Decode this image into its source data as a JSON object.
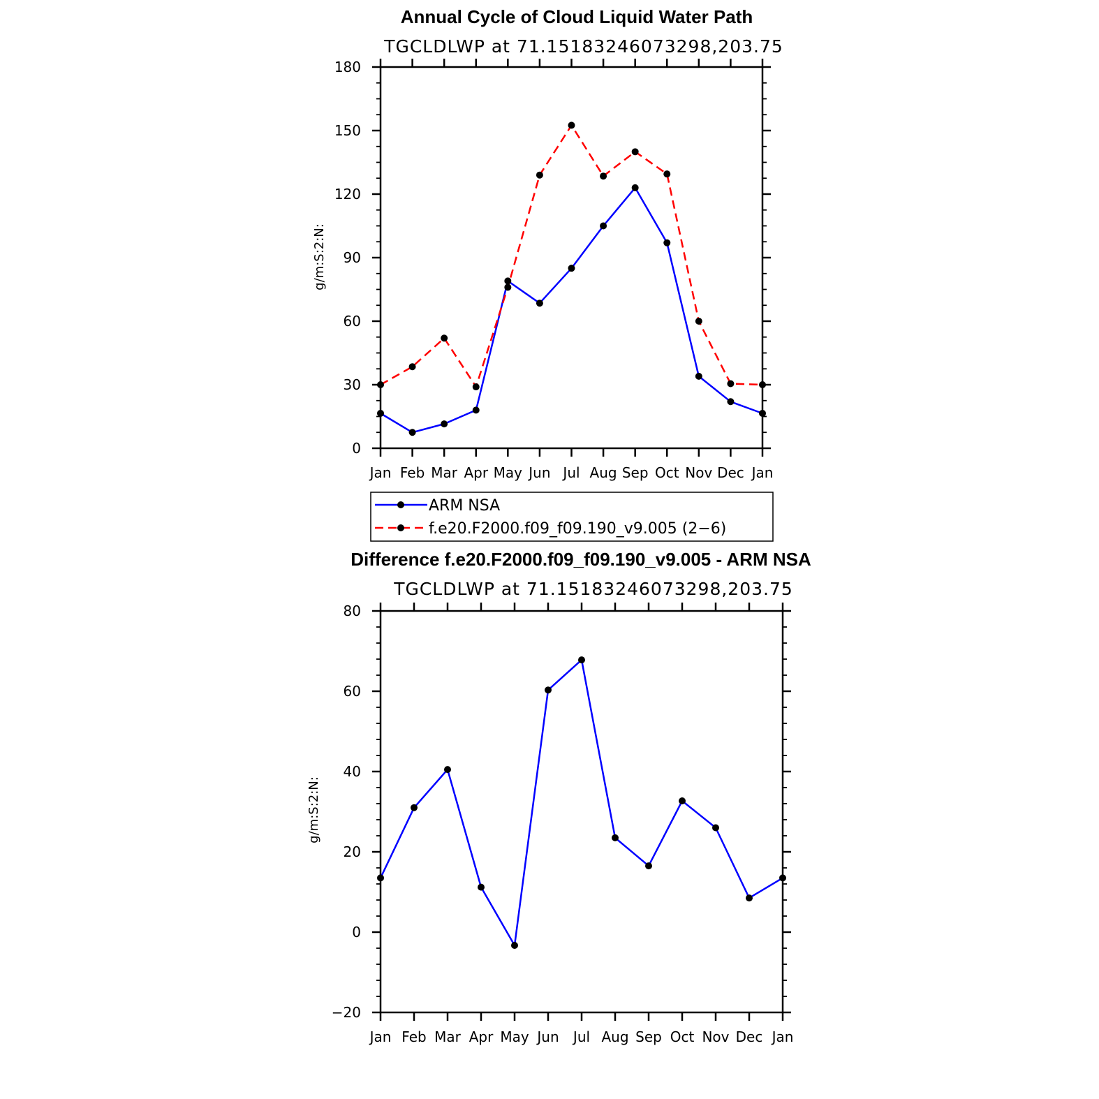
{
  "chart_data": [
    {
      "type": "line",
      "title": "Annual Cycle of Cloud Liquid Water Path",
      "subtitle": "TGCLDLWP  at  71.15183246073298,203.75",
      "xlabel": "",
      "ylabel": "g/m:S:2:N:",
      "categories": [
        "Jan",
        "Feb",
        "Mar",
        "Apr",
        "May",
        "Jun",
        "Jul",
        "Aug",
        "Sep",
        "Oct",
        "Nov",
        "Dec",
        "Jan"
      ],
      "ylim": [
        0,
        180
      ],
      "yticks": [
        "0",
        "30",
        "60",
        "90",
        "120",
        "150",
        "180"
      ],
      "grid": false,
      "series": [
        {
          "name": "ARM NSA",
          "color": "#0000ff",
          "dash": "solid",
          "values": [
            16.5,
            7.5,
            11.5,
            18,
            79,
            68.5,
            85,
            105,
            123,
            97,
            34,
            22,
            16.5
          ]
        },
        {
          "name": "f.e20.F2000.f09_f09.190_v9.005 (2−6)",
          "color": "#ff0000",
          "dash": "dashed",
          "values": [
            30,
            38.5,
            52,
            29,
            76,
            129,
            152.5,
            128.5,
            140,
            129.5,
            60,
            30.5,
            30
          ]
        }
      ],
      "legend_placement": "below"
    },
    {
      "type": "line",
      "title": "Difference f.e20.F2000.f09_f09.190_v9.005 - ARM NSA",
      "subtitle": "TGCLDLWP  at  71.15183246073298,203.75",
      "xlabel": "",
      "ylabel": "g/m:S:2:N:",
      "categories": [
        "Jan",
        "Feb",
        "Mar",
        "Apr",
        "May",
        "Jun",
        "Jul",
        "Aug",
        "Sep",
        "Oct",
        "Nov",
        "Dec",
        "Jan"
      ],
      "ylim": [
        -20,
        80
      ],
      "yticks": [
        "−20",
        "0",
        "20",
        "40",
        "60",
        "80"
      ],
      "grid": false,
      "series": [
        {
          "color": "#0000ff",
          "dash": "solid",
          "values": [
            13.5,
            31,
            40.5,
            11.2,
            -3.3,
            60.3,
            67.8,
            23.5,
            16.5,
            32.7,
            26,
            8.5,
            13.5
          ]
        }
      ]
    }
  ]
}
